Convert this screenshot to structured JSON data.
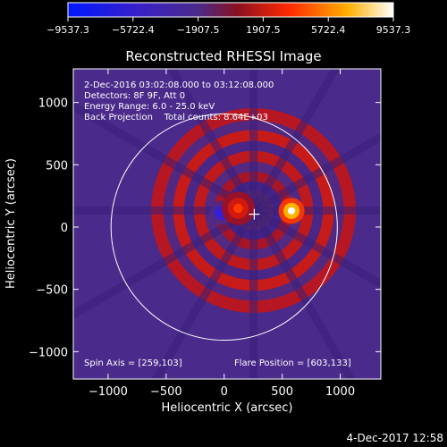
{
  "chart_data": {
    "type": "heatmap",
    "title": "Reconstructed RHESSI Image",
    "xlabel": "Heliocentric X (arcsec)",
    "ylabel": "Heliocentric Y (arcsec)",
    "xlim": [
      -1300,
      1350
    ],
    "ylim": [
      -1220,
      1270
    ],
    "xticks": [
      -1000,
      -500,
      0,
      500,
      1000
    ],
    "xtick_labels": [
      "−1000",
      "−500",
      "0",
      "500",
      "1000"
    ],
    "yticks": [
      -1000,
      -500,
      0,
      500,
      1000
    ],
    "ytick_labels": [
      "−1000",
      "−500",
      "0",
      "500",
      "1000"
    ],
    "colorbar": {
      "min": -9537.3,
      "max": 9537.3,
      "ticks": [
        -9537.3,
        -5722.4,
        -1907.5,
        1907.5,
        5722.4,
        9537.3
      ],
      "tick_labels": [
        "−9537.3",
        "−5722.4",
        "−1907.5",
        "1907.5",
        "5722.4",
        "9537.3"
      ],
      "colors": [
        "#0018ff",
        "#3a20c8",
        "#4a2a8a",
        "#8a1020",
        "#ff2a00",
        "#ffb000",
        "#ffffff"
      ]
    },
    "solar_disk": {
      "center": [
        0,
        0
      ],
      "radius": 975
    },
    "flare_position": [
      603,
      133
    ],
    "spin_axis": [
      259,
      103
    ],
    "sources": [
      {
        "x": 580,
        "y": 130,
        "value": 8600,
        "sigma": 70
      },
      {
        "x": -20,
        "y": 115,
        "value": -6500,
        "sigma": 65
      },
      {
        "x": 120,
        "y": 150,
        "value": 2800,
        "sigma": 90
      }
    ],
    "info_lines": [
      "2-Dec-2016 03:02:08.000 to 03:12:08.000",
      "Detectors: 8F 9F, Att 0",
      "Energy Range: 6.0 - 25.0 keV",
      "Back Projection    Total counts: 8.64E+03"
    ],
    "spin_axis_label": "Spin Axis = [259,103]",
    "flare_position_label": "Flare Position = [603,133]"
  },
  "footer": {
    "date_stamp": "4-Dec-2017 12:58"
  }
}
